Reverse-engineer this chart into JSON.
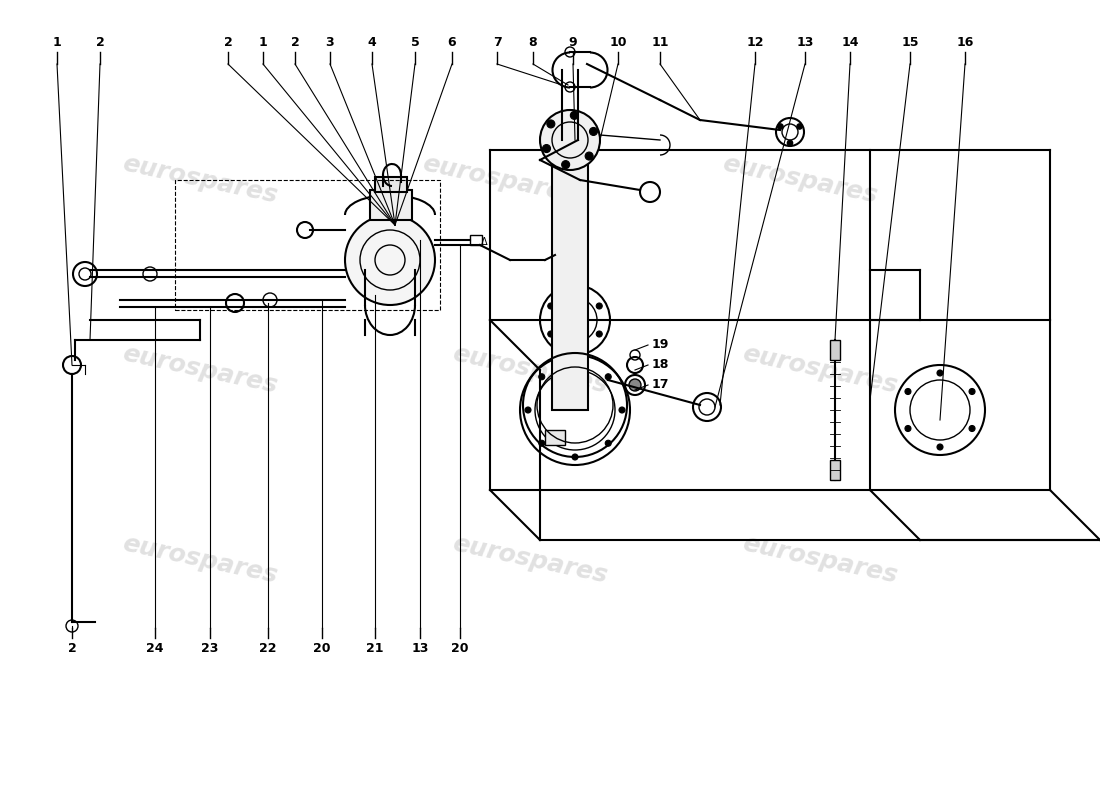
{
  "bg_color": "#ffffff",
  "line_color": "#000000",
  "wm_color": "#c8c8c8",
  "top_labels": [
    [
      "1",
      57
    ],
    [
      "2",
      100
    ],
    [
      "2",
      228
    ],
    [
      "1",
      263
    ],
    [
      "2",
      295
    ],
    [
      "3",
      330
    ],
    [
      "4",
      372
    ],
    [
      "5",
      415
    ],
    [
      "6",
      452
    ],
    [
      "7",
      497
    ],
    [
      "8",
      533
    ],
    [
      "9",
      573
    ],
    [
      "10",
      618
    ],
    [
      "11",
      660
    ],
    [
      "12",
      755
    ],
    [
      "13",
      805
    ],
    [
      "14",
      850
    ],
    [
      "15",
      910
    ],
    [
      "16",
      965
    ]
  ],
  "bottom_labels": [
    [
      "2",
      72
    ],
    [
      "24",
      155
    ],
    [
      "23",
      210
    ],
    [
      "22",
      268
    ],
    [
      "20",
      322
    ],
    [
      "21",
      375
    ],
    [
      "13",
      420
    ],
    [
      "20",
      460
    ]
  ],
  "side_labels": [
    [
      "17",
      660,
      415
    ],
    [
      "18",
      660,
      435
    ],
    [
      "19",
      660,
      455
    ]
  ]
}
